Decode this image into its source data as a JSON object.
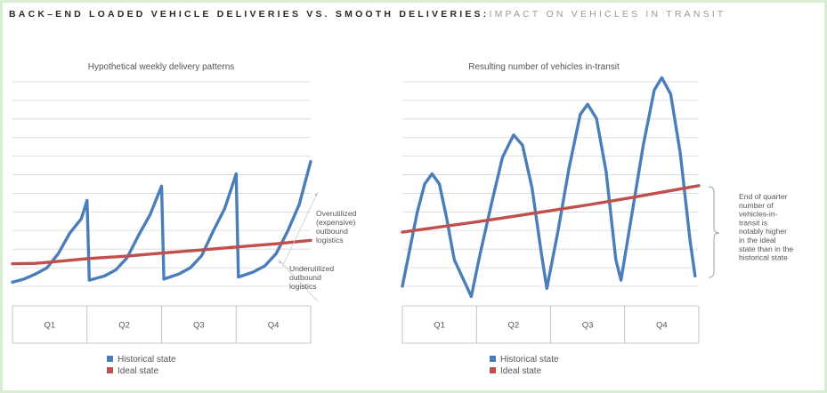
{
  "heading": {
    "main": "BACK–END LOADED VEHICLE DELIVERIES VS. SMOOTH DELIVERIES",
    "separator": ":",
    "sub": "IMPACT ON VEHICLES IN TRANSIT"
  },
  "colors": {
    "historical": "#4a7ebb",
    "ideal": "#c0504d",
    "grid": "#d6d6d6",
    "axis": "#b5b5b5"
  },
  "chart_data": [
    {
      "type": "line",
      "title": "Hypothetical weekly delivery patterns",
      "categories": [
        "Q1",
        "Q2",
        "Q3",
        "Q4"
      ],
      "x_range": [
        0,
        52
      ],
      "ylim": [
        0,
        10
      ],
      "grid": true,
      "legend_position": "bottom",
      "series": [
        {
          "name": "Historical state",
          "color_key": "historical",
          "points": [
            [
              0,
              0.2
            ],
            [
              2,
              0.35
            ],
            [
              4,
              0.6
            ],
            [
              6,
              0.9
            ],
            [
              8,
              1.6
            ],
            [
              10,
              2.6
            ],
            [
              12,
              3.3
            ],
            [
              13,
              4.2
            ],
            [
              13.4,
              0.3
            ],
            [
              16,
              0.5
            ],
            [
              18,
              0.8
            ],
            [
              20,
              1.4
            ],
            [
              22,
              2.5
            ],
            [
              24,
              3.5
            ],
            [
              26,
              4.9
            ],
            [
              26.4,
              0.35
            ],
            [
              29,
              0.6
            ],
            [
              31,
              0.9
            ],
            [
              33,
              1.5
            ],
            [
              35,
              2.7
            ],
            [
              37,
              3.8
            ],
            [
              39,
              5.5
            ],
            [
              39.4,
              0.45
            ],
            [
              42,
              0.7
            ],
            [
              44,
              1.0
            ],
            [
              46,
              1.6
            ],
            [
              48,
              2.7
            ],
            [
              50,
              4.0
            ],
            [
              52,
              6.1
            ]
          ]
        },
        {
          "name": "Ideal state",
          "color_key": "ideal",
          "points": [
            [
              0,
              1.1
            ],
            [
              4,
              1.12
            ],
            [
              8,
              1.22
            ],
            [
              13,
              1.35
            ],
            [
              20,
              1.48
            ],
            [
              26,
              1.62
            ],
            [
              33,
              1.78
            ],
            [
              39,
              1.92
            ],
            [
              46,
              2.08
            ],
            [
              52,
              2.25
            ]
          ]
        }
      ],
      "annotations": [
        {
          "key": "overutilized",
          "lines": [
            "Overutilized",
            "(expensive)",
            "outbound",
            "logistics"
          ]
        },
        {
          "key": "underutilized",
          "lines": [
            "Underutilized",
            "outbound",
            "logistics"
          ]
        }
      ]
    },
    {
      "type": "line",
      "title": "Resulting number of vehicles in-transit",
      "categories": [
        "Q1",
        "Q2",
        "Q3",
        "Q4"
      ],
      "x_range": [
        0,
        4
      ],
      "ylim": [
        0,
        10
      ],
      "grid": true,
      "legend_position": "bottom",
      "series": [
        {
          "name": "Historical state",
          "color_key": "historical",
          "points": [
            [
              0,
              0
            ],
            [
              0.1,
              1.8
            ],
            [
              0.2,
              3.6
            ],
            [
              0.3,
              5.0
            ],
            [
              0.4,
              5.5
            ],
            [
              0.5,
              5.0
            ],
            [
              0.6,
              3.3
            ],
            [
              0.7,
              1.3
            ],
            [
              0.93,
              -0.5
            ],
            [
              1.05,
              1.6
            ],
            [
              1.2,
              4.0
            ],
            [
              1.35,
              6.3
            ],
            [
              1.5,
              7.4
            ],
            [
              1.62,
              6.9
            ],
            [
              1.75,
              4.8
            ],
            [
              1.88,
              1.5
            ],
            [
              1.95,
              -0.1
            ],
            [
              2.1,
              2.7
            ],
            [
              2.25,
              5.8
            ],
            [
              2.4,
              8.4
            ],
            [
              2.5,
              8.9
            ],
            [
              2.62,
              8.2
            ],
            [
              2.75,
              5.6
            ],
            [
              2.88,
              1.3
            ],
            [
              2.95,
              0.3
            ],
            [
              3.1,
              3.6
            ],
            [
              3.25,
              6.9
            ],
            [
              3.4,
              9.6
            ],
            [
              3.5,
              10.2
            ],
            [
              3.62,
              9.4
            ],
            [
              3.75,
              6.5
            ],
            [
              3.88,
              2.3
            ],
            [
              3.95,
              0.5
            ]
          ]
        },
        {
          "name": "Ideal state",
          "color_key": "ideal",
          "points": [
            [
              0,
              2.65
            ],
            [
              0.5,
              2.9
            ],
            [
              1,
              3.15
            ],
            [
              1.5,
              3.42
            ],
            [
              2,
              3.7
            ],
            [
              2.5,
              3.98
            ],
            [
              3,
              4.28
            ],
            [
              3.5,
              4.6
            ],
            [
              4,
              4.92
            ]
          ]
        }
      ],
      "annotations": [
        {
          "key": "end_of_quarter",
          "lines": [
            "End of quarter",
            "number of",
            "vehicles-in-",
            "transit is",
            "notably higher",
            "in the ideal",
            "state than in the",
            "historical state"
          ]
        }
      ]
    }
  ]
}
